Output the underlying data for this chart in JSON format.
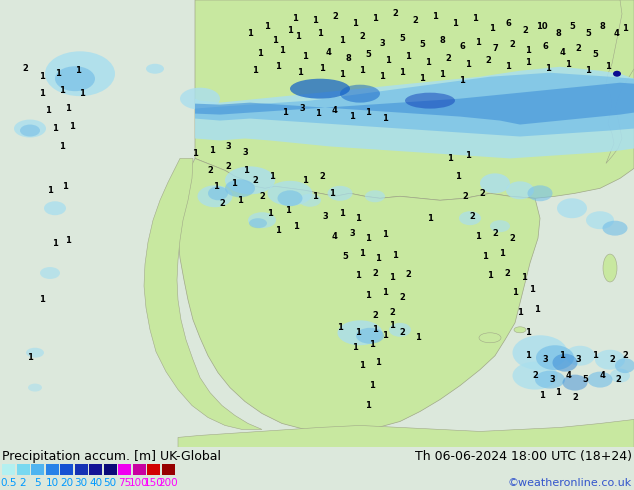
{
  "title_left": "Precipitation accum. [m] UK-Global",
  "title_right": "Th 06-06-2024 18:00 UTC (18+24)",
  "credit": "©weatheronline.co.uk",
  "legend_values": [
    "0.5",
    "2",
    "5",
    "10",
    "20",
    "30",
    "40",
    "50",
    "75",
    "100",
    "150",
    "200"
  ],
  "legend_colors": [
    "#b4f0f0",
    "#78d8f0",
    "#50b4f0",
    "#2882e8",
    "#1450d2",
    "#1432b4",
    "#141496",
    "#0a0a78",
    "#f000f0",
    "#c800a0",
    "#d20000",
    "#960000"
  ],
  "legend_label_colors": [
    "#0099ff",
    "#0099ff",
    "#0099ff",
    "#0099ff",
    "#0099ff",
    "#0099ff",
    "#0099ff",
    "#0099ff",
    "#ff00ff",
    "#ff00ff",
    "#ff00ff",
    "#ff00ff"
  ],
  "land_color": "#c8e8a0",
  "sea_color": "#dce8dc",
  "precip_light": "#aadfee",
  "precip_med": "#78c0e8",
  "precip_dark": "#4090d8",
  "precip_darker": "#1060c8",
  "font_size_title": 9,
  "font_size_legend": 7.5,
  "font_size_credit": 8,
  "font_size_numbers": 6
}
